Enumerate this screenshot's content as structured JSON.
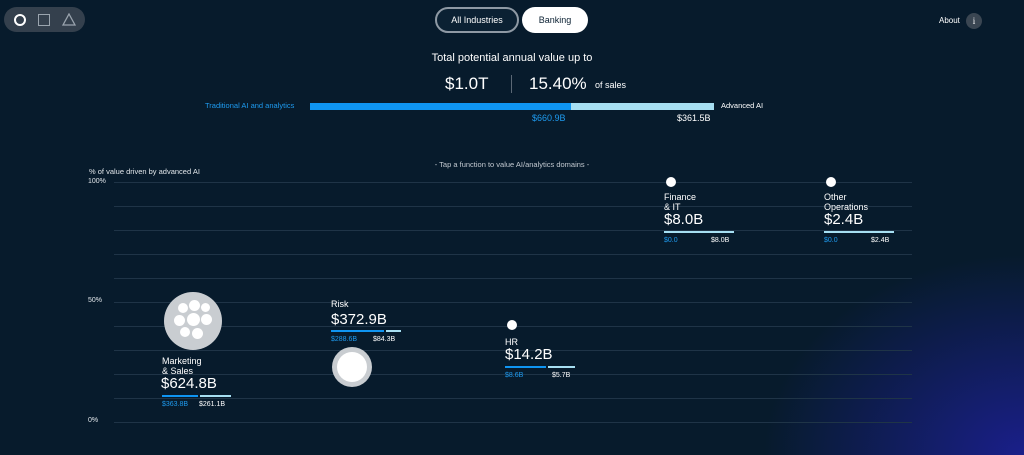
{
  "shape_switcher": {
    "options": [
      "circle-icon",
      "square-icon",
      "triangle-icon"
    ],
    "selected": "circle"
  },
  "industry_toggle": {
    "all_label": "All Industries",
    "selected_label": "Banking"
  },
  "header_right": {
    "about_label": "About",
    "info_label": "i"
  },
  "summary": {
    "headline": "Total potential annual value up to",
    "total_value": "$1.0T",
    "percent": "15.40%",
    "percent_suffix": "of sales",
    "traditional_label": "Traditional AI and analytics",
    "advanced_label": "Advanced AI",
    "traditional_value": "$660.9B",
    "advanced_value": "$361.5B",
    "traditional_fraction": 0.646
  },
  "chart": {
    "hint": "- Tap a function to value AI/analytics domains -",
    "y_title": "% of value driven by advanced AI",
    "y_ticks": [
      "100%",
      "50%",
      "0%"
    ]
  },
  "domains": {
    "marketing": {
      "name_line1": "Marketing",
      "name_line2": "& Sales",
      "value": "$624.8B",
      "traditional": "$363.8B",
      "advanced": "$261.1B"
    },
    "risk": {
      "name_line1": "Risk",
      "value": "$372.9B",
      "traditional": "$288.6B",
      "advanced": "$84.3B"
    },
    "hr": {
      "name_line1": "HR",
      "value": "$14.2B",
      "traditional": "$8.6B",
      "advanced": "$5.7B"
    },
    "finance": {
      "name_line1": "Finance",
      "name_line2": "& IT",
      "value": "$8.0B",
      "traditional": "$0.0",
      "advanced": "$8.0B"
    },
    "other": {
      "name_line1": "Other",
      "name_line2": "Operations",
      "value": "$2.4B",
      "traditional": "$0.0",
      "advanced": "$2.4B"
    }
  },
  "colors": {
    "background": "#071b2c",
    "traditional": "#0f95f2",
    "advanced": "#a6dff2",
    "corner_glow": "#1a1f8a"
  }
}
